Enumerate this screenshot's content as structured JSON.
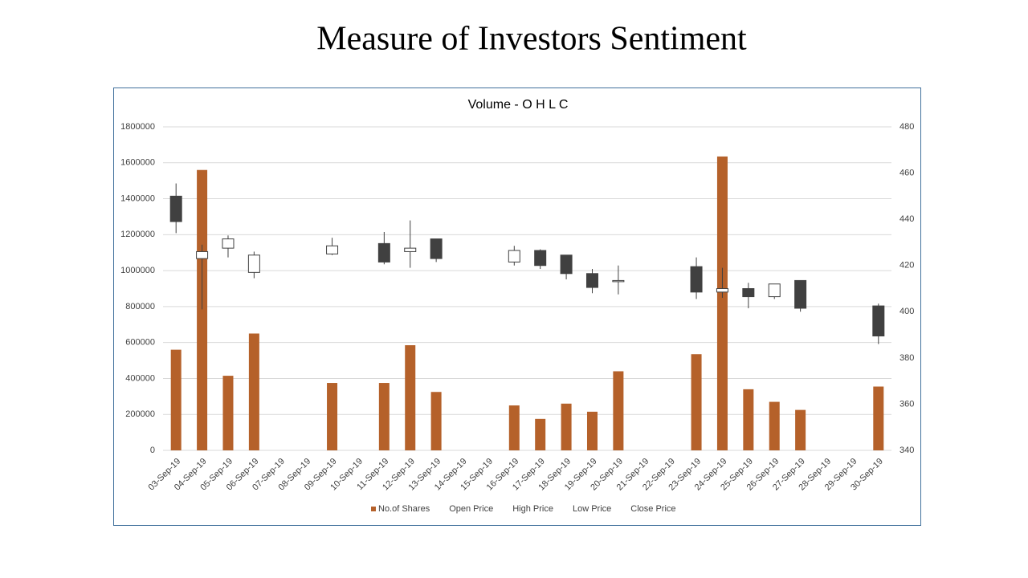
{
  "slide_title": "Measure of Investors Sentiment",
  "chart_data": {
    "type": "combo",
    "title": "Volume - O H L C",
    "categories": [
      "03-Sep-19",
      "04-Sep-19",
      "05-Sep-19",
      "06-Sep-19",
      "07-Sep-19",
      "08-Sep-19",
      "09-Sep-19",
      "10-Sep-19",
      "11-Sep-19",
      "12-Sep-19",
      "13-Sep-19",
      "14-Sep-19",
      "15-Sep-19",
      "16-Sep-19",
      "17-Sep-19",
      "18-Sep-19",
      "19-Sep-19",
      "20-Sep-19",
      "21-Sep-19",
      "22-Sep-19",
      "23-Sep-19",
      "24-Sep-19",
      "25-Sep-19",
      "26-Sep-19",
      "27-Sep-19",
      "28-Sep-19",
      "29-Sep-19",
      "30-Sep-19"
    ],
    "series": [
      {
        "name": "No.of Shares",
        "color": "#b5612a",
        "values": [
          560000,
          1560000,
          415000,
          650000,
          null,
          null,
          375000,
          null,
          375000,
          585000,
          325000,
          null,
          null,
          250000,
          175000,
          260000,
          215000,
          440000,
          null,
          null,
          535000,
          1635000,
          340000,
          270000,
          225000,
          null,
          null,
          355000
        ]
      },
      {
        "name": "Open Price",
        "axis": "y2",
        "values": [
          450,
          423,
          427.5,
          417,
          null,
          null,
          425,
          null,
          429.5,
          426,
          431.5,
          null,
          null,
          421.5,
          426.5,
          424.5,
          416.5,
          413,
          null,
          null,
          419.5,
          408.5,
          410,
          406.5,
          413.5,
          null,
          null,
          402.5
        ]
      },
      {
        "name": "High Price",
        "axis": "y2",
        "values": [
          455.5,
          429,
          433,
          426,
          null,
          null,
          432,
          null,
          434.5,
          439.5,
          431.5,
          null,
          null,
          428.5,
          427,
          424.5,
          418.5,
          420,
          null,
          null,
          423.5,
          419,
          412.5,
          412,
          413.5,
          null,
          null,
          403.5
        ]
      },
      {
        "name": "Low Price",
        "axis": "y2",
        "values": [
          434,
          401,
          423.5,
          414.5,
          null,
          null,
          424.5,
          null,
          420.5,
          419,
          421.5,
          null,
          null,
          420,
          418.5,
          414,
          408,
          407.5,
          null,
          null,
          405.5,
          406,
          401.5,
          405.5,
          400,
          null,
          null,
          386
        ]
      },
      {
        "name": "Close Price",
        "axis": "y2",
        "values": [
          439,
          426,
          431.5,
          424.5,
          null,
          null,
          428.5,
          null,
          421.5,
          427.5,
          423,
          null,
          null,
          426.5,
          420,
          416.5,
          410.5,
          413.5,
          null,
          null,
          408.5,
          410,
          406.5,
          412,
          401.5,
          null,
          null,
          389.5
        ]
      }
    ],
    "up_color": "#ffffff",
    "down_color": "#404040",
    "ylim": [
      0,
      1800000
    ],
    "yticks": [
      0,
      200000,
      400000,
      600000,
      800000,
      1000000,
      1200000,
      1400000,
      1600000,
      1800000
    ],
    "y2lim": [
      340,
      480
    ],
    "y2ticks": [
      340,
      360,
      380,
      400,
      420,
      440,
      460,
      480
    ],
    "grid": true,
    "legend": "bottom"
  }
}
